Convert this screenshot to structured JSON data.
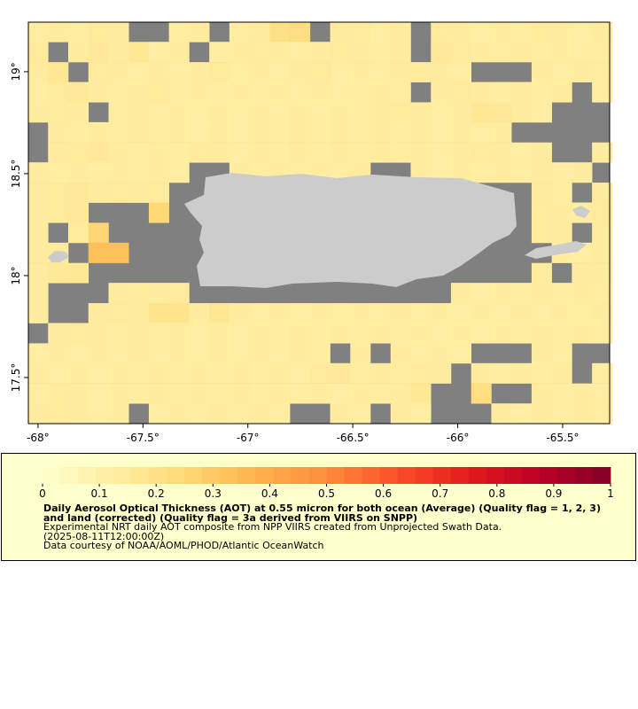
{
  "chart_data": {
    "type": "heatmap",
    "title": "Daily Aerosol Optical Thickness (AOT) at 0.55 micron for both ocean (Average) (Quality flag = 1, 2, 3) and land (corrected) (Quality flag = 3a derived from VIIRS on SNPP)",
    "subtitle": "Experimental NRT daily AOT composite from NPP VIIRS created from Unprojected Swath Data.",
    "time": "(2025-08-11T12:00:00Z)",
    "credit": "Data courtesy of NOAA/AOML/PHOD/Atlantic OceanWatch",
    "x": [
      -68.0,
      -67.904,
      -67.808,
      -67.712,
      -67.616,
      -67.52,
      -67.424,
      -67.328,
      -67.232,
      -67.136,
      -67.04,
      -66.944,
      -66.848,
      -66.752,
      -66.656,
      -66.56,
      -66.464,
      -66.368,
      -66.272,
      -66.176,
      -66.08,
      -65.984,
      -65.888,
      -65.792,
      -65.696,
      -65.6,
      -65.504,
      -65.408,
      -65.312
    ],
    "y": [
      19.195,
      19.097,
      18.998,
      18.9,
      18.801,
      18.703,
      18.604,
      18.506,
      18.407,
      18.309,
      18.21,
      18.112,
      18.013,
      17.915,
      17.816,
      17.718,
      17.619,
      17.521,
      17.422,
      17.324
    ],
    "values": [
      [
        0.12,
        0.13,
        0.12,
        0.14,
        0.13,
        null,
        null,
        0.12,
        0.13,
        null,
        0.12,
        0.13,
        0.2,
        0.22,
        null,
        0.13,
        0.14,
        0.12,
        0.13,
        null,
        0.14,
        0.13,
        0.12,
        0.13,
        0.12,
        0.14,
        0.13,
        0.12,
        0.13
      ],
      [
        0.14,
        null,
        0.13,
        0.15,
        0.13,
        0.16,
        0.12,
        0.13,
        null,
        0.12,
        0.13,
        0.14,
        0.13,
        0.12,
        0.13,
        0.14,
        0.13,
        0.12,
        0.13,
        null,
        0.15,
        0.14,
        0.13,
        0.12,
        0.13,
        0.12,
        0.13,
        0.12,
        0.12
      ],
      [
        0.13,
        0.16,
        null,
        0.14,
        0.13,
        0.12,
        0.13,
        0.12,
        0.13,
        0.14,
        0.12,
        0.13,
        0.12,
        0.13,
        0.14,
        0.12,
        0.13,
        0.12,
        0.13,
        0.14,
        0.13,
        0.12,
        null,
        null,
        null,
        0.13,
        0.12,
        0.13,
        0.12
      ],
      [
        0.12,
        0.14,
        0.15,
        0.13,
        0.12,
        0.13,
        0.14,
        0.12,
        0.13,
        0.12,
        0.13,
        0.12,
        0.13,
        0.12,
        0.13,
        0.12,
        0.12,
        0.13,
        0.12,
        null,
        0.13,
        0.14,
        0.13,
        0.12,
        0.13,
        0.12,
        0.13,
        null,
        0.12
      ],
      [
        0.13,
        0.14,
        0.13,
        null,
        0.12,
        0.13,
        0.12,
        0.13,
        0.12,
        0.13,
        0.12,
        0.13,
        0.12,
        0.13,
        0.12,
        0.13,
        0.12,
        0.13,
        0.14,
        0.13,
        0.12,
        0.13,
        0.16,
        0.15,
        0.13,
        0.12,
        null,
        null,
        null
      ],
      [
        null,
        0.13,
        0.12,
        0.13,
        0.12,
        0.13,
        0.12,
        0.13,
        0.12,
        0.13,
        0.12,
        0.13,
        0.12,
        0.13,
        0.12,
        0.13,
        0.12,
        0.13,
        0.12,
        0.13,
        0.12,
        0.13,
        0.12,
        0.13,
        null,
        null,
        null,
        null,
        null
      ],
      [
        null,
        0.13,
        0.14,
        0.15,
        0.13,
        0.12,
        0.13,
        0.12,
        0.14,
        0.13,
        0.12,
        0.13,
        0.12,
        0.13,
        0.12,
        0.13,
        0.12,
        0.13,
        0.12,
        0.13,
        0.12,
        0.13,
        0.14,
        0.13,
        0.12,
        0.13,
        null,
        null,
        0.13
      ],
      [
        0.13,
        0.12,
        0.13,
        0.12,
        0.13,
        0.12,
        0.13,
        0.12,
        null,
        null,
        0.13,
        0.12,
        0.13,
        0.12,
        0.13,
        0.12,
        0.13,
        null,
        null,
        0.13,
        0.12,
        0.13,
        0.12,
        0.13,
        0.12,
        0.13,
        0.12,
        0.13,
        null
      ],
      [
        0.13,
        0.14,
        0.15,
        0.13,
        0.14,
        0.13,
        0.14,
        null,
        null,
        null,
        null,
        null,
        null,
        null,
        null,
        null,
        null,
        null,
        null,
        null,
        null,
        null,
        null,
        null,
        null,
        0.13,
        0.12,
        null,
        0.13
      ],
      [
        0.13,
        0.14,
        0.15,
        null,
        null,
        null,
        0.25,
        null,
        null,
        null,
        null,
        null,
        null,
        null,
        null,
        null,
        null,
        null,
        null,
        null,
        null,
        null,
        null,
        null,
        null,
        0.14,
        0.13,
        0.12,
        0.14
      ],
      [
        0.13,
        null,
        0.14,
        0.26,
        null,
        null,
        null,
        null,
        null,
        null,
        null,
        null,
        null,
        null,
        null,
        null,
        null,
        null,
        null,
        null,
        null,
        null,
        null,
        null,
        null,
        0.14,
        0.13,
        null,
        0.13
      ],
      [
        0.13,
        0.14,
        null,
        0.33,
        0.33,
        null,
        null,
        null,
        null,
        null,
        null,
        null,
        null,
        null,
        null,
        null,
        null,
        null,
        null,
        null,
        null,
        null,
        null,
        null,
        null,
        null,
        0.13,
        0.12,
        0.13
      ],
      [
        0.13,
        0.15,
        0.16,
        null,
        null,
        null,
        null,
        null,
        null,
        null,
        null,
        null,
        null,
        null,
        null,
        null,
        null,
        null,
        null,
        null,
        null,
        null,
        null,
        null,
        null,
        0.14,
        null,
        0.13,
        0.13
      ],
      [
        0.13,
        null,
        null,
        null,
        0.13,
        0.14,
        0.13,
        0.14,
        null,
        null,
        null,
        null,
        null,
        null,
        null,
        null,
        null,
        null,
        null,
        null,
        null,
        0.13,
        0.12,
        0.13,
        0.12,
        0.13,
        0.12,
        0.13,
        0.12
      ],
      [
        0.13,
        null,
        null,
        0.13,
        0.14,
        0.13,
        0.18,
        0.18,
        0.13,
        0.16,
        0.13,
        0.12,
        0.13,
        0.12,
        0.13,
        0.12,
        0.13,
        0.12,
        0.13,
        0.12,
        0.13,
        0.12,
        0.13,
        0.12,
        0.13,
        0.12,
        0.13,
        0.12,
        0.13
      ],
      [
        null,
        0.13,
        0.14,
        0.13,
        0.12,
        0.13,
        0.12,
        0.13,
        0.12,
        0.13,
        0.12,
        0.13,
        0.12,
        0.13,
        0.12,
        0.13,
        0.12,
        0.13,
        0.12,
        0.13,
        0.12,
        0.13,
        0.12,
        0.13,
        0.12,
        0.13,
        0.12,
        0.13,
        0.12
      ],
      [
        0.12,
        0.13,
        0.12,
        0.13,
        0.12,
        0.13,
        0.12,
        0.13,
        0.12,
        0.13,
        0.12,
        0.13,
        0.12,
        0.13,
        0.12,
        null,
        0.13,
        null,
        0.13,
        0.12,
        0.13,
        0.12,
        null,
        null,
        null,
        0.13,
        0.12,
        null,
        null
      ],
      [
        0.13,
        0.12,
        0.13,
        0.12,
        0.13,
        0.12,
        0.13,
        0.12,
        0.13,
        0.12,
        0.13,
        0.12,
        0.13,
        0.12,
        0.14,
        0.15,
        0.12,
        0.13,
        0.12,
        0.14,
        0.13,
        null,
        0.13,
        0.12,
        0.13,
        0.12,
        0.13,
        null,
        0.12
      ],
      [
        0.12,
        0.14,
        0.13,
        0.12,
        0.13,
        0.12,
        0.13,
        0.12,
        0.13,
        0.12,
        0.13,
        0.12,
        0.13,
        0.12,
        0.13,
        0.12,
        0.13,
        0.12,
        0.13,
        0.16,
        null,
        null,
        0.22,
        null,
        null,
        0.13,
        0.12,
        0.13,
        0.12
      ],
      [
        0.13,
        0.14,
        0.13,
        0.12,
        0.13,
        null,
        0.12,
        0.13,
        0.12,
        0.13,
        0.12,
        0.13,
        0.12,
        null,
        null,
        0.13,
        0.12,
        null,
        0.13,
        0.12,
        null,
        null,
        null,
        0.13,
        0.12,
        0.13,
        0.12,
        0.13,
        0.12
      ]
    ],
    "xlim": [
      -68.046,
      -65.276
    ],
    "ylim": [
      17.274,
      19.243
    ],
    "xticks": [
      {
        "value": -68,
        "label": "-68°"
      },
      {
        "value": -67.5,
        "label": "-67.5°"
      },
      {
        "value": -67,
        "label": "-67°"
      },
      {
        "value": -66.5,
        "label": "-66.5°"
      },
      {
        "value": -66,
        "label": "-66°"
      },
      {
        "value": -65.5,
        "label": "-65.5°"
      }
    ],
    "yticks": [
      {
        "value": 17.5,
        "label": "17.5°"
      },
      {
        "value": 18,
        "label": "18°"
      },
      {
        "value": 18.5,
        "label": "18.5°"
      },
      {
        "value": 19,
        "label": "19°"
      }
    ],
    "colorbar": {
      "lim": [
        0,
        1
      ],
      "ticks": [
        0,
        0.1,
        0.2,
        0.3,
        0.4,
        0.5,
        0.6,
        0.7,
        0.8,
        0.9,
        1
      ]
    },
    "colorscale": [
      "#ffffcc",
      "#ffeda0",
      "#fed976",
      "#feb24c",
      "#fd8d3c",
      "#fc4e2a",
      "#e31a1c",
      "#bd0026",
      "#800026"
    ],
    "missing_color": "#808080",
    "land_color": "#cccccc"
  }
}
